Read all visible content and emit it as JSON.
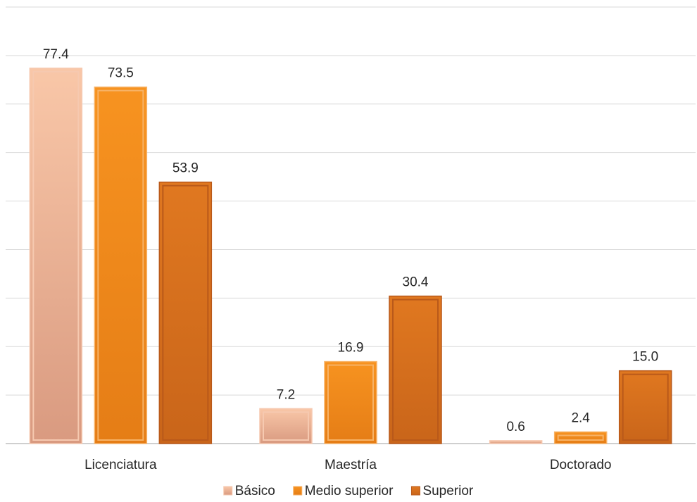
{
  "chart_data": {
    "type": "bar",
    "categories": [
      "Licenciatura",
      "Maestría",
      "Doctorado"
    ],
    "series": [
      {
        "name": "Básico",
        "values": [
          77.4,
          7.2,
          0.6
        ],
        "color": "#e8a27f",
        "edge": "#f6c9b0"
      },
      {
        "name": "Medio superior",
        "values": [
          73.5,
          16.9,
          2.4
        ],
        "color": "#f08a1e",
        "edge": "#f7b266"
      },
      {
        "name": "Superior",
        "values": [
          53.9,
          30.4,
          15.0
        ],
        "color": "#d9731c",
        "edge": "#b9591a"
      }
    ],
    "data_labels": [
      [
        "77.4",
        "7.2",
        "0.6"
      ],
      [
        "73.5",
        "16.9",
        "2.4"
      ],
      [
        "53.9",
        "30.4",
        "15.0"
      ]
    ],
    "title": "",
    "xlabel": "",
    "ylabel": "",
    "ylim": [
      0,
      90
    ],
    "grid": true,
    "legend": "bottom-center"
  }
}
